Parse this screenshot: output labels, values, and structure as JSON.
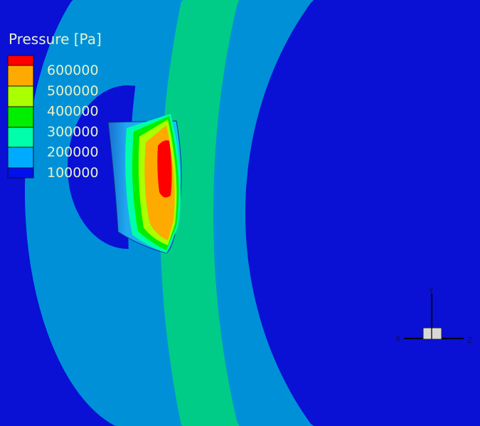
{
  "legend": {
    "title": "Pressure [Pa]",
    "levels": [
      {
        "label": "600000",
        "color": "#ff0000"
      },
      {
        "label": "500000",
        "color": "#ffaa00"
      },
      {
        "label": "400000",
        "color": "#aaff00"
      },
      {
        "label": "300000",
        "color": "#00ee00"
      },
      {
        "label": "200000",
        "color": "#00ffaa"
      },
      {
        "label": "100000",
        "color": "#00aaff"
      }
    ],
    "bottom_color": "#0010ee"
  },
  "axes_triad": {
    "x": "X",
    "y": "Y",
    "z": "Z"
  },
  "colors": {
    "background": "#0a10d4",
    "band_light": "#0090d8",
    "band_green": "#00cc88"
  }
}
